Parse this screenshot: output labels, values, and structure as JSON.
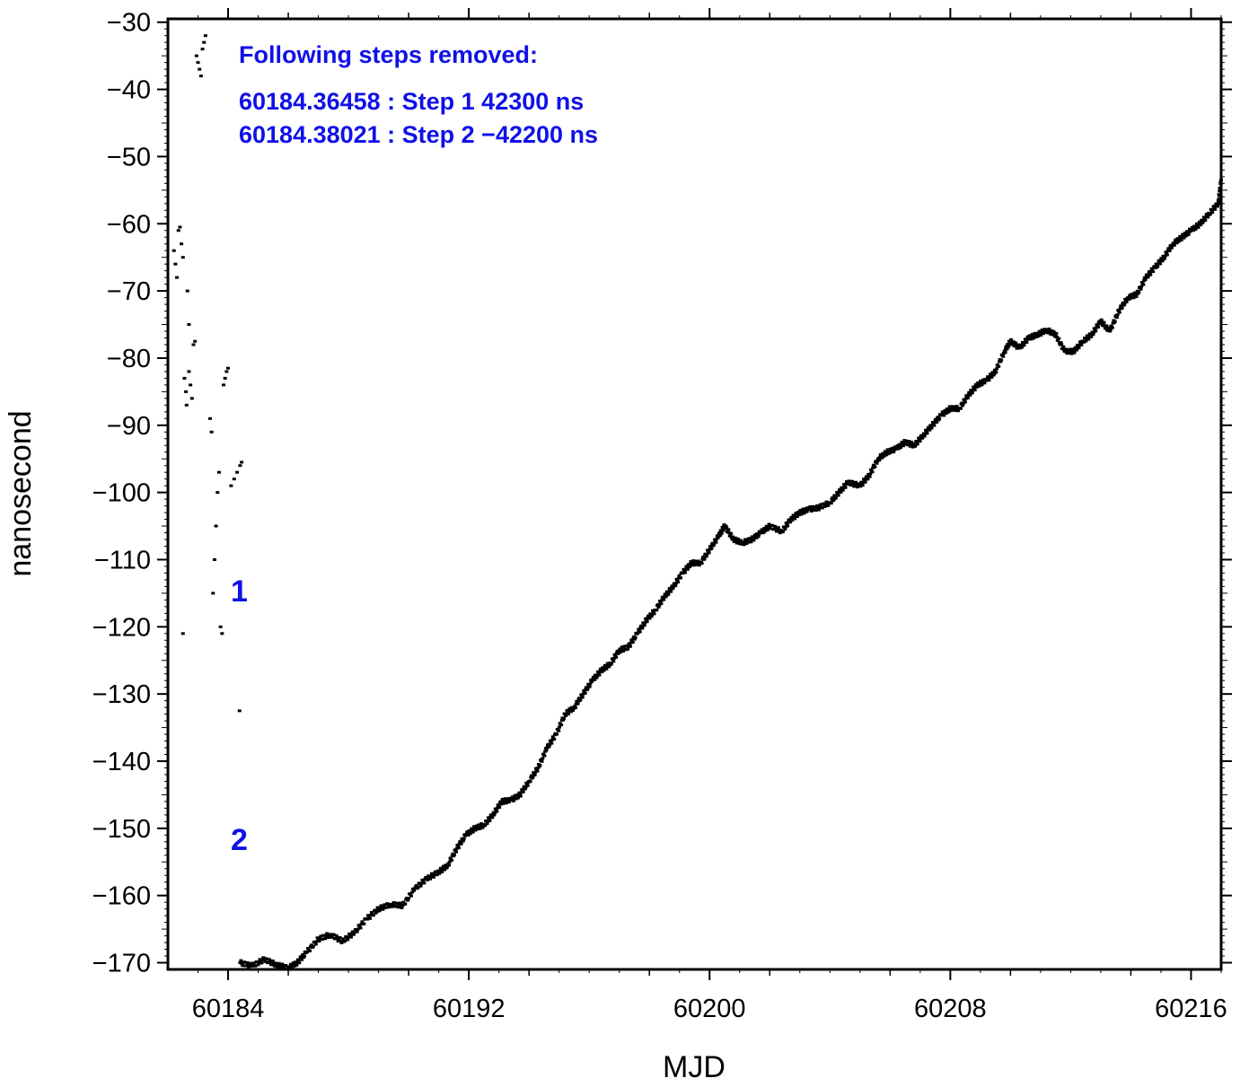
{
  "chart_data": {
    "type": "scatter",
    "title": "",
    "xlabel": "MJD",
    "ylabel": "nanosecond",
    "xlim": [
      60182,
      60217
    ],
    "ylim": [
      -171,
      -29.5
    ],
    "x_ticks": [
      60184,
      60192,
      60200,
      60208,
      60216
    ],
    "y_ticks": [
      -30,
      -40,
      -50,
      -60,
      -70,
      -80,
      -90,
      -100,
      -110,
      -120,
      -130,
      -140,
      -150,
      -160,
      -170
    ],
    "grid": false,
    "legend": "none",
    "colors": {
      "points": "#000000",
      "annotation": "#1010e8"
    },
    "annotation": {
      "heading": "Following steps removed:",
      "lines": [
        "60184.36458 : Step 1 42300 ns",
        "60184.38021 : Step 2 −42200 ns"
      ]
    },
    "step_markers": [
      {
        "label": "1",
        "x": 60184.36,
        "y": -115
      },
      {
        "label": "2",
        "x": 60184.36,
        "y": -152
      }
    ],
    "series": [
      {
        "points": [
          [
            60182.2,
            -64
          ],
          [
            60182.25,
            -66
          ],
          [
            60182.3,
            -68
          ],
          [
            60182.35,
            -61
          ],
          [
            60182.4,
            -60.5
          ],
          [
            60182.45,
            -63
          ],
          [
            60182.5,
            -65
          ],
          [
            60182.55,
            -83
          ],
          [
            60182.6,
            -85
          ],
          [
            60182.62,
            -87
          ],
          [
            60182.5,
            -121
          ],
          [
            60182.65,
            -70
          ],
          [
            60182.7,
            -75
          ],
          [
            60182.7,
            -82
          ],
          [
            60182.75,
            -84
          ],
          [
            60182.8,
            -86
          ],
          [
            60182.85,
            -78
          ],
          [
            60182.9,
            -77.5
          ],
          [
            60182.95,
            -35
          ],
          [
            60183.0,
            -36
          ],
          [
            60183.05,
            -37
          ],
          [
            60183.1,
            -38
          ],
          [
            60183.15,
            -34
          ],
          [
            60183.2,
            -33
          ],
          [
            60183.25,
            -32
          ],
          [
            60183.4,
            -89
          ],
          [
            60183.45,
            -91
          ],
          [
            60183.5,
            -115
          ],
          [
            60183.55,
            -110
          ],
          [
            60183.6,
            -105
          ],
          [
            60183.65,
            -100
          ],
          [
            60183.7,
            -97
          ],
          [
            60183.75,
            -120
          ],
          [
            60183.8,
            -121
          ],
          [
            60183.85,
            -84
          ],
          [
            60183.9,
            -83
          ],
          [
            60183.95,
            -82
          ],
          [
            60184.0,
            -81.5
          ],
          [
            60184.1,
            -99
          ],
          [
            60184.2,
            -98
          ],
          [
            60184.3,
            -97
          ],
          [
            60184.4,
            -96
          ],
          [
            60184.38,
            -132.5
          ],
          [
            60184.45,
            -95.5
          ]
        ]
      },
      {
        "points": [
          [
            60184.4,
            -170
          ],
          [
            60184.8,
            -170.5
          ],
          [
            60185.2,
            -169.5
          ],
          [
            60185.6,
            -170.3
          ],
          [
            60186.0,
            -170.8
          ],
          [
            60186.3,
            -170
          ],
          [
            60186.6,
            -168.5
          ],
          [
            60187.0,
            -166.5
          ],
          [
            60187.4,
            -165.8
          ],
          [
            60187.8,
            -166.8
          ],
          [
            60188.2,
            -165.5
          ],
          [
            60188.6,
            -163.5
          ],
          [
            60189.0,
            -162
          ],
          [
            60189.4,
            -161.3
          ],
          [
            60189.8,
            -161.5
          ],
          [
            60190.2,
            -159
          ],
          [
            60190.6,
            -157.5
          ],
          [
            60191.0,
            -156.5
          ],
          [
            60191.3,
            -155.5
          ],
          [
            60191.6,
            -153
          ],
          [
            60191.9,
            -151
          ],
          [
            60192.2,
            -150
          ],
          [
            60192.5,
            -149.5
          ],
          [
            60192.8,
            -148
          ],
          [
            60193.1,
            -146
          ],
          [
            60193.4,
            -145.8
          ],
          [
            60193.7,
            -145
          ],
          [
            60194.0,
            -143
          ],
          [
            60194.3,
            -141
          ],
          [
            60194.6,
            -138
          ],
          [
            60194.9,
            -136
          ],
          [
            60195.2,
            -133
          ],
          [
            60195.5,
            -132
          ],
          [
            60195.8,
            -130
          ],
          [
            60196.1,
            -128
          ],
          [
            60196.4,
            -126.5
          ],
          [
            60196.7,
            -125.5
          ],
          [
            60197.0,
            -123.5
          ],
          [
            60197.3,
            -123
          ],
          [
            60197.6,
            -121
          ],
          [
            60197.9,
            -119
          ],
          [
            60198.2,
            -117.5
          ],
          [
            60198.5,
            -115.5
          ],
          [
            60198.8,
            -114
          ],
          [
            60199.1,
            -112
          ],
          [
            60199.4,
            -110.5
          ],
          [
            60199.7,
            -110.5
          ],
          [
            60200.0,
            -108.5
          ],
          [
            60200.3,
            -106.5
          ],
          [
            60200.5,
            -105
          ],
          [
            60200.8,
            -107
          ],
          [
            60201.1,
            -107.5
          ],
          [
            60201.4,
            -107
          ],
          [
            60201.7,
            -106
          ],
          [
            60202.0,
            -105
          ],
          [
            60202.4,
            -105.8
          ],
          [
            60202.7,
            -104
          ],
          [
            60203.0,
            -103
          ],
          [
            60203.3,
            -102.5
          ],
          [
            60203.6,
            -102.3
          ],
          [
            60204.0,
            -101.5
          ],
          [
            60204.3,
            -100
          ],
          [
            60204.6,
            -98.5
          ],
          [
            60205.0,
            -99
          ],
          [
            60205.3,
            -97.5
          ],
          [
            60205.6,
            -95
          ],
          [
            60205.9,
            -94
          ],
          [
            60206.2,
            -93.5
          ],
          [
            60206.5,
            -92.5
          ],
          [
            60206.8,
            -93
          ],
          [
            60207.1,
            -91.5
          ],
          [
            60207.4,
            -90
          ],
          [
            60207.7,
            -88.5
          ],
          [
            60208.0,
            -87.5
          ],
          [
            60208.3,
            -87.5
          ],
          [
            60208.6,
            -85.5
          ],
          [
            60208.9,
            -84
          ],
          [
            60209.2,
            -83.3
          ],
          [
            60209.5,
            -82
          ],
          [
            60209.8,
            -79
          ],
          [
            60210.0,
            -77.5
          ],
          [
            60210.3,
            -78.5
          ],
          [
            60210.6,
            -77
          ],
          [
            60210.9,
            -76.5
          ],
          [
            60211.2,
            -75.8
          ],
          [
            60211.5,
            -76.5
          ],
          [
            60211.8,
            -79
          ],
          [
            60212.1,
            -79
          ],
          [
            60212.4,
            -77.5
          ],
          [
            60212.7,
            -76.5
          ],
          [
            60213.0,
            -74.5
          ],
          [
            60213.3,
            -76
          ],
          [
            60213.6,
            -73
          ],
          [
            60213.9,
            -71
          ],
          [
            60214.2,
            -70.5
          ],
          [
            60214.5,
            -68
          ],
          [
            60214.8,
            -66.5
          ],
          [
            60215.1,
            -65
          ],
          [
            60215.4,
            -63
          ],
          [
            60215.7,
            -62
          ],
          [
            60216.0,
            -61
          ],
          [
            60216.3,
            -60
          ],
          [
            60216.6,
            -58.5
          ],
          [
            60216.9,
            -57
          ],
          [
            60217.0,
            -53.5
          ]
        ]
      }
    ]
  }
}
